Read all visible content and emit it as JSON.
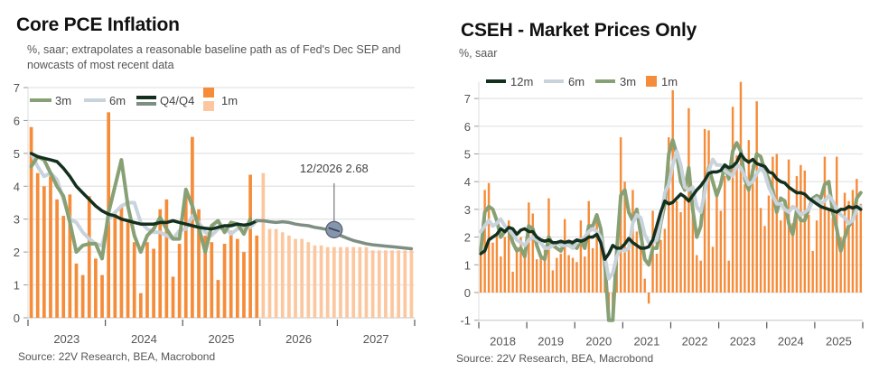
{
  "chart_data": [
    {
      "id": "core-pce",
      "type": "bar",
      "title": "Core PCE Inflation",
      "subtitle": "%, saar; extrapolates a reasonable baseline path as of Fed's Dec SEP and nowcasts of most recent data",
      "source": "Source: 22V Research, BEA, Macrobond",
      "xlabel": "",
      "ylabel": "",
      "ylim": [
        0,
        7
      ],
      "yticks": [
        0,
        1,
        2,
        3,
        4,
        5,
        6,
        7
      ],
      "x_years": [
        "2023",
        "2024",
        "2025",
        "2026",
        "2027"
      ],
      "grid": true,
      "legend": [
        {
          "name": "3m",
          "color": "#87a074",
          "kind": "line"
        },
        {
          "name": "6m",
          "color": "#c9d3dc",
          "kind": "line"
        },
        {
          "name": "Q4/Q4",
          "color": "#13301f",
          "color2": "#7d8f82",
          "kind": "double-line"
        },
        {
          "name": "1m",
          "color": "#f58c3a",
          "color2": "#fcc79e",
          "kind": "double-box"
        }
      ],
      "legend_position": "top-left",
      "annotation": {
        "label": "12/2026 2.68",
        "x_index": 47,
        "value": 2.68
      },
      "series_1m_actual": [
        5.8,
        4.4,
        4.0,
        4.3,
        3.6,
        3.1,
        3.75,
        1.65,
        1.3,
        3.7,
        1.8,
        1.3,
        6.25,
        3.2,
        3.4,
        2.9,
        2.3,
        0.75,
        2.3,
        2.1,
        3.3,
        3.6,
        1.25,
        2.25,
        3.8,
        5.5,
        3.3,
        2.5,
        2.3,
        1.15,
        2.25,
        2.65,
        2.4,
        2.0,
        4.35,
        2.5
      ],
      "series_1m_forecast": [
        4.4,
        2.7,
        2.7,
        2.6,
        2.5,
        2.4,
        2.4,
        2.3,
        2.2,
        2.2,
        2.15,
        2.15,
        2.15,
        2.15,
        2.15,
        2.15,
        2.15,
        2.05,
        2.05,
        2.05,
        2.05,
        2.05,
        2.05,
        2.05
      ],
      "series_3m": [
        4.6,
        4.9,
        4.8,
        4.4,
        4.0,
        3.7,
        2.9,
        2.0,
        2.2,
        2.25,
        2.25,
        1.8,
        3.2,
        4.0,
        4.8,
        3.4,
        2.5,
        2.0,
        2.5,
        2.7,
        3.05,
        2.7,
        2.4,
        2.4,
        3.9,
        3.4,
        2.75,
        2.0,
        2.8,
        2.95,
        2.6,
        2.9,
        2.85,
        2.55,
        3.0
      ],
      "series_6m": [
        5.0,
        4.6,
        4.3,
        4.4,
        4.2,
        3.6,
        3.0,
        2.9,
        2.6,
        2.4,
        2.25,
        2.2,
        3.0,
        3.2,
        3.4,
        3.5,
        3.5,
        2.9,
        2.7,
        2.6,
        2.6,
        2.5,
        2.4,
        2.65,
        2.7,
        3.1,
        2.9,
        2.6,
        2.5,
        2.7,
        2.75,
        2.55,
        2.7,
        2.75,
        2.75,
        2.95
      ],
      "series_q4q4_actual": [
        5.0,
        4.9,
        4.85,
        4.8,
        4.75,
        4.55,
        4.3,
        4.0,
        3.8,
        3.6,
        3.4,
        3.25,
        3.15,
        3.1,
        3.0,
        2.95,
        2.9,
        2.85,
        2.85,
        2.85,
        2.9,
        2.9,
        2.95,
        2.9,
        2.85,
        2.8,
        2.75,
        2.72,
        2.7,
        2.75,
        2.8,
        2.8,
        2.85,
        2.82,
        2.85,
        2.95
      ],
      "series_q4q4_forecast": [
        2.95,
        2.95,
        2.92,
        2.9,
        2.92,
        2.9,
        2.85,
        2.82,
        2.8,
        2.75,
        2.72,
        2.68,
        2.6,
        2.5,
        2.42,
        2.35,
        2.3,
        2.25,
        2.22,
        2.2,
        2.18,
        2.16,
        2.14,
        2.12,
        2.1
      ]
    },
    {
      "id": "cseh",
      "type": "bar",
      "title": "CSEH - Market Prices Only",
      "subtitle": "%, saar",
      "source": "Source: 22V Research, BEA, Macrobond",
      "xlabel": "",
      "ylabel": "",
      "ylim": [
        -1,
        7.6
      ],
      "yticks": [
        -1,
        0,
        1,
        2,
        3,
        4,
        5,
        6,
        7
      ],
      "x_years": [
        "2018",
        "2019",
        "2020",
        "2021",
        "2022",
        "2023",
        "2024",
        "2025"
      ],
      "grid": true,
      "legend": [
        {
          "name": "12m",
          "color": "#13301f",
          "kind": "line"
        },
        {
          "name": "6m",
          "color": "#c9d3dc",
          "kind": "line"
        },
        {
          "name": "3m",
          "color": "#87a074",
          "kind": "line"
        },
        {
          "name": "1m",
          "color": "#f58c3a",
          "kind": "box"
        }
      ],
      "legend_position": "top-left",
      "series_1m": [
        1.5,
        3.7,
        3.95,
        1.8,
        2.1,
        1.3,
        2.0,
        2.6,
        0.75,
        1.65,
        2.0,
        1.3,
        3.25,
        2.85,
        1.2,
        1.3,
        1.6,
        3.4,
        0.8,
        1.25,
        1.4,
        2.65,
        1.35,
        1.25,
        1.1,
        2.6,
        1.3,
        3.3,
        1.6,
        2.8,
        2.3,
        1.4,
        -1.3,
        -1.0,
        1.25,
        5.6,
        4.0,
        1.9,
        3.7,
        2.2,
        1.7,
        0.5,
        -0.4,
        2.95,
        1.4,
        1.9,
        2.3,
        5.6,
        7.3,
        3.3,
        2.9,
        3.5,
        6.65,
        3.4,
        1.35,
        1.15,
        5.9,
        5.85,
        1.65,
        3.75,
        2.95,
        4.2,
        1.15,
        6.7,
        4.95,
        7.6,
        3.9,
        5.5,
        4.6,
        6.9,
        3.05,
        2.4,
        3.5,
        4.9,
        5.0,
        2.6,
        3.2,
        4.8,
        2.5,
        4.2,
        4.6,
        4.4,
        2.8,
        1.5,
        2.6,
        3.2,
        4.9,
        3.05,
        2.7,
        4.9,
        2.0,
        3.6,
        3.3,
        3.7,
        4.1,
        3.2,
        6.55,
        5.7,
        2.6,
        1.4,
        3.6,
        1.5,
        2.5,
        3.5,
        3.3,
        3.9,
        2.7,
        3.0,
        2.85,
        3.5,
        2.4,
        3.8,
        3.5,
        3.35,
        2.7,
        3.5,
        2.5,
        3.7,
        3.1,
        2.9,
        3.0,
        3.35,
        3.6,
        3.4
      ],
      "series_3m": [
        1.5,
        2.9,
        3.1,
        3.0,
        2.6,
        2.0,
        2.2,
        2.3,
        1.8,
        1.5,
        1.6,
        1.3,
        2.4,
        2.3,
        1.7,
        1.3,
        1.2,
        2.0,
        1.7,
        1.6,
        1.5,
        1.8,
        1.8,
        1.7,
        1.6,
        1.9,
        1.6,
        2.4,
        2.4,
        2.8,
        2.3,
        1.1,
        -1.0,
        -1.0,
        1.5,
        3.5,
        3.7,
        2.9,
        2.6,
        3.0,
        2.1,
        1.2,
        1.0,
        1.6,
        1.6,
        2.5,
        3.2,
        5.0,
        5.5,
        5.0,
        4.0,
        3.7,
        4.5,
        3.0,
        2.0,
        2.4,
        3.8,
        4.5,
        4.0,
        3.5,
        3.9,
        4.6,
        4.1,
        5.1,
        5.4,
        5.1,
        4.1,
        3.7,
        4.4,
        5.0,
        4.9,
        4.4,
        4.1,
        3.7,
        2.9,
        3.4,
        3.3,
        2.5,
        2.1,
        3.0,
        2.6,
        2.6,
        3.0,
        3.4,
        3.5,
        3.4,
        3.9,
        4.0,
        2.9,
        2.3,
        1.5,
        2.0,
        2.4,
        2.6,
        3.4,
        3.6,
        3.6,
        3.3,
        3.2,
        3.5,
        3.0,
        3.3,
        3.2,
        2.9,
        2.6,
        2.5,
        2.6,
        2.6,
        2.9,
        2.7,
        2.9,
        3.2,
        3.0,
        2.7,
        2.8,
        2.4,
        2.7,
        2.9,
        3.1,
        3.0,
        3.2,
        3.2,
        3.4
      ],
      "series_6m": [
        2.2,
        2.4,
        2.6,
        2.4,
        2.5,
        2.65,
        2.4,
        2.3,
        2.1,
        1.9,
        1.8,
        1.7,
        1.9,
        2.0,
        1.9,
        1.8,
        1.6,
        1.6,
        1.7,
        1.8,
        1.7,
        1.7,
        1.7,
        1.6,
        1.8,
        1.9,
        2.0,
        2.2,
        2.3,
        2.2,
        2.0,
        1.3,
        0.5,
        0.7,
        1.3,
        1.6,
        1.5,
        1.6,
        2.5,
        2.8,
        2.7,
        2.1,
        1.8,
        1.8,
        1.9,
        2.6,
        3.6,
        3.9,
        4.6,
        5.1,
        4.6,
        3.8,
        3.7,
        3.8,
        3.1,
        2.9,
        3.6,
        4.4,
        4.8,
        4.6,
        4.6,
        4.4,
        4.3,
        4.2,
        4.6,
        4.5,
        4.2,
        3.9,
        4.0,
        4.3,
        4.5,
        4.3,
        3.8,
        3.5,
        3.2,
        3.2,
        3.0,
        2.9,
        3.1,
        3.0,
        2.8,
        2.9,
        3.0,
        3.3,
        3.4,
        3.2,
        3.3,
        3.5,
        3.3,
        3.0,
        2.8,
        2.7,
        2.5,
        2.6,
        3.0,
        3.1,
        3.2,
        3.4,
        3.3,
        3.2,
        3.1,
        3.0,
        3.0,
        2.9,
        2.8,
        2.8,
        2.7,
        2.6,
        2.7,
        2.8,
        2.7,
        2.8,
        2.9,
        3.0,
        2.9,
        2.9,
        2.8,
        2.9,
        3.0,
        3.0,
        3.1,
        3.1,
        3.2
      ],
      "series_12m": [
        1.4,
        1.5,
        1.9,
        2.0,
        2.1,
        2.3,
        2.2,
        2.35,
        2.3,
        2.1,
        2.25,
        2.3,
        2.2,
        2.2,
        2.0,
        1.9,
        1.85,
        1.9,
        1.8,
        1.8,
        1.85,
        1.8,
        1.85,
        1.8,
        1.9,
        1.85,
        1.9,
        2.0,
        2.0,
        2.1,
        1.8,
        1.2,
        1.4,
        1.7,
        1.6,
        1.6,
        1.75,
        1.95,
        1.8,
        1.7,
        1.6,
        1.6,
        1.65,
        1.9,
        2.4,
        2.9,
        3.3,
        3.2,
        3.25,
        3.4,
        3.55,
        3.45,
        3.3,
        3.5,
        3.7,
        3.85,
        4.05,
        4.3,
        4.35,
        4.35,
        4.4,
        4.6,
        4.5,
        4.55,
        4.7,
        5.0,
        4.8,
        4.7,
        4.8,
        4.65,
        4.6,
        4.55,
        4.35,
        4.3,
        4.1,
        4.0,
        3.95,
        3.8,
        3.7,
        3.6,
        3.6,
        3.55,
        3.4,
        3.3,
        3.2,
        3.1,
        3.05,
        3.0,
        2.95,
        2.9,
        3.0,
        3.0,
        3.1,
        3.05,
        3.1,
        3.0,
        3.05,
        3.1,
        2.95,
        3.05,
        3.1,
        3.0,
        3.1,
        3.0,
        3.05,
        3.0,
        3.0,
        3.1,
        3.05,
        3.0,
        2.95,
        3.0,
        3.05,
        3.1,
        3.1,
        3.0,
        3.0,
        3.05,
        3.0,
        3.0,
        3.0,
        3.0,
        3.0
      ]
    }
  ]
}
